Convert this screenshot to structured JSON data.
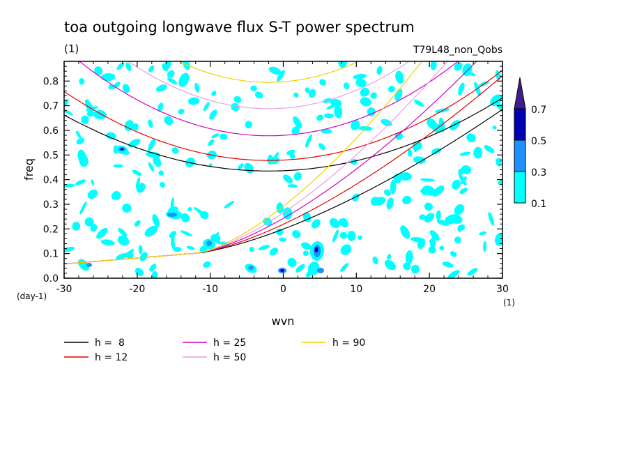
{
  "chart_data": {
    "type": "contour",
    "title": "toa outgoing longwave flux S-T power spectrum",
    "units_label": "(1)",
    "subtitle": "T79L48_non_Qobs",
    "xlabel": "wvn",
    "ylabel": "freq",
    "x_unit_label": "(1)",
    "y_unit_label": "(day-1)",
    "xlim": [
      -30,
      30
    ],
    "ylim": [
      0,
      0.88
    ],
    "xticks": [
      -30,
      -20,
      -10,
      0,
      10,
      20,
      30
    ],
    "xtick_labels": [
      "-30",
      "-20",
      "-10",
      "0",
      "10",
      "20",
      "30"
    ],
    "yticks": [
      0,
      0.1,
      0.2,
      0.3,
      0.4,
      0.5,
      0.6,
      0.7,
      0.8
    ],
    "ytick_labels": [
      "0.0",
      "0.1",
      "0.2",
      "0.3",
      "0.4",
      "0.5",
      "0.6",
      "0.7",
      "0.8"
    ],
    "colorbar": {
      "levels": [
        "0.1",
        "0.3",
        "0.5",
        "0.7"
      ],
      "colors": [
        "#00ffff",
        "#1e90ff",
        "#0000b4",
        "#3c1e8c"
      ]
    },
    "dispersion_curves": [
      {
        "label": "h =  8",
        "h": 8,
        "color": "#000000"
      },
      {
        "label": "h = 12",
        "h": 12,
        "color": "#e60000"
      },
      {
        "label": "h = 25",
        "h": 25,
        "color": "#d200c8"
      },
      {
        "label": "h = 50",
        "h": 50,
        "color": "#e6a0e6"
      },
      {
        "label": "h = 90",
        "h": 90,
        "color": "#f0d200"
      }
    ],
    "legend_position": "below-left"
  }
}
